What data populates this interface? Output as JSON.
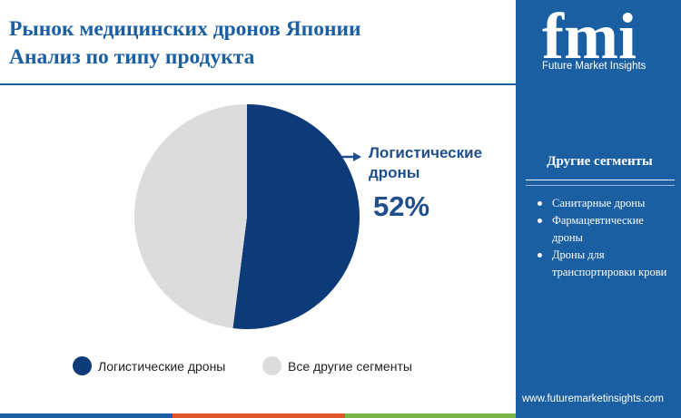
{
  "title_line1": "Рынок медицинских дронов Японии",
  "title_line2": "Анализ по типу продукта",
  "chart_data": {
    "type": "pie",
    "slices": [
      {
        "label": "Логистические дроны",
        "value": 52,
        "color": "#0d3b7a"
      },
      {
        "label": "Все другие сегменты",
        "value": 48,
        "color": "#dcdcdc"
      }
    ],
    "callout": {
      "label_line1": "Логистические",
      "label_line2": "дроны",
      "value": "52%"
    },
    "legend": [
      "Логистические дроны",
      "Все другие сегменты"
    ],
    "legend_position": "bottom"
  },
  "brand": {
    "logo_text": "fmi",
    "name": "Future Market Insights",
    "website": "www.futuremarketinsights.com",
    "panel_color": "#1b5fa3"
  },
  "other_segments": {
    "title": "Другие сегменты",
    "items": [
      {
        "line1": "Санитарные дроны",
        "line2": ""
      },
      {
        "line1": "Фармацевтические",
        "line2": "дроны"
      },
      {
        "line1": "Дроны для",
        "line2": "транспортировки крови"
      }
    ]
  },
  "bottom_bar_colors": [
    "#1b5fa3",
    "#e0562b",
    "#7ab648",
    "#1b5fa3"
  ]
}
